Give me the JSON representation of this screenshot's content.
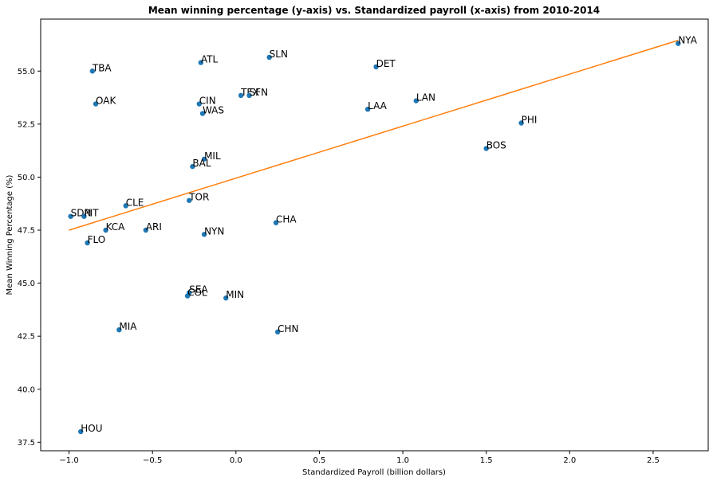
{
  "chart_data": {
    "type": "scatter",
    "title": "Mean winning percentage (y-axis) vs. Standardized payroll (x-axis) from 2010-2014",
    "xlabel": "Standardized Payroll (billion dollars)",
    "ylabel": "Mean Winning Percentage (%)",
    "xlim": [
      -1.17,
      2.83
    ],
    "ylim": [
      37.1,
      57.45
    ],
    "xticks": [
      -1.0,
      -0.5,
      0.0,
      0.5,
      1.0,
      1.5,
      2.0,
      2.5
    ],
    "xtick_labels": [
      "−1.0",
      "−0.5",
      "0.0",
      "0.5",
      "1.0",
      "1.5",
      "2.0",
      "2.5"
    ],
    "yticks": [
      37.5,
      40.0,
      42.5,
      45.0,
      47.5,
      50.0,
      52.5,
      55.0
    ],
    "ytick_labels": [
      "37.5",
      "40.0",
      "42.5",
      "45.0",
      "47.5",
      "50.0",
      "52.5",
      "55.0"
    ],
    "grid": false,
    "marker_color": "#1f77b4",
    "line_color": "#ff7f0e",
    "points": [
      {
        "label": "NYA",
        "x": 2.65,
        "y": 56.3
      },
      {
        "label": "SLN",
        "x": 0.2,
        "y": 55.65
      },
      {
        "label": "ATL",
        "x": -0.21,
        "y": 55.4
      },
      {
        "label": "DET",
        "x": 0.84,
        "y": 55.2
      },
      {
        "label": "TBA",
        "x": -0.86,
        "y": 55.0
      },
      {
        "label": "TEX",
        "x": 0.03,
        "y": 53.85
      },
      {
        "label": "SFN",
        "x": 0.08,
        "y": 53.85
      },
      {
        "label": "LAN",
        "x": 1.08,
        "y": 53.6
      },
      {
        "label": "OAK",
        "x": -0.84,
        "y": 53.45
      },
      {
        "label": "CIN",
        "x": -0.22,
        "y": 53.45
      },
      {
        "label": "LAA",
        "x": 0.79,
        "y": 53.2
      },
      {
        "label": "WAS",
        "x": -0.2,
        "y": 53.0
      },
      {
        "label": "PHI",
        "x": 1.71,
        "y": 52.55
      },
      {
        "label": "BOS",
        "x": 1.5,
        "y": 51.35
      },
      {
        "label": "MIL",
        "x": -0.19,
        "y": 50.85
      },
      {
        "label": "BAL",
        "x": -0.26,
        "y": 50.5
      },
      {
        "label": "TOR",
        "x": -0.28,
        "y": 48.9
      },
      {
        "label": "CLE",
        "x": -0.66,
        "y": 48.65
      },
      {
        "label": "SDN",
        "x": -0.99,
        "y": 48.15
      },
      {
        "label": "PIT",
        "x": -0.91,
        "y": 48.15
      },
      {
        "label": "CHA",
        "x": 0.24,
        "y": 47.85
      },
      {
        "label": "KCA",
        "x": -0.78,
        "y": 47.5
      },
      {
        "label": "ARI",
        "x": -0.54,
        "y": 47.5
      },
      {
        "label": "NYN",
        "x": -0.19,
        "y": 47.3
      },
      {
        "label": "FLO",
        "x": -0.89,
        "y": 46.9
      },
      {
        "label": "SEA",
        "x": -0.28,
        "y": 44.55
      },
      {
        "label": "COL",
        "x": -0.29,
        "y": 44.4
      },
      {
        "label": "MIN",
        "x": -0.06,
        "y": 44.3
      },
      {
        "label": "MIA",
        "x": -0.7,
        "y": 42.8
      },
      {
        "label": "CHN",
        "x": 0.25,
        "y": 42.7
      },
      {
        "label": "HOU",
        "x": -0.93,
        "y": 38.0
      }
    ],
    "regression_line": {
      "x": [
        -1.0,
        2.65
      ],
      "y": [
        47.5,
        56.45
      ]
    }
  }
}
